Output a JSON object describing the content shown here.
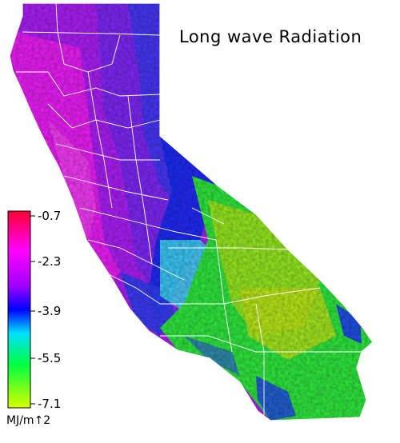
{
  "title": "Long wave Radiation",
  "legend": {
    "ticks": [
      "-0.7",
      "-2.3",
      "-3.9",
      "-5.5",
      "-7.1"
    ],
    "unit": "MJ/m↑2",
    "colors": [
      "#ff0030",
      "#ff00ff",
      "#a000ff",
      "#0000ff",
      "#00e0ff",
      "#00ff40",
      "#d8ff00"
    ]
  },
  "palette": {
    "magenta": "#ff00ff",
    "purple": "#a020f0",
    "blue": "#1a2cff",
    "cyan": "#40e0ff",
    "green": "#30f040",
    "yellow_green": "#b0f020",
    "county_lines": "#ffffff"
  }
}
